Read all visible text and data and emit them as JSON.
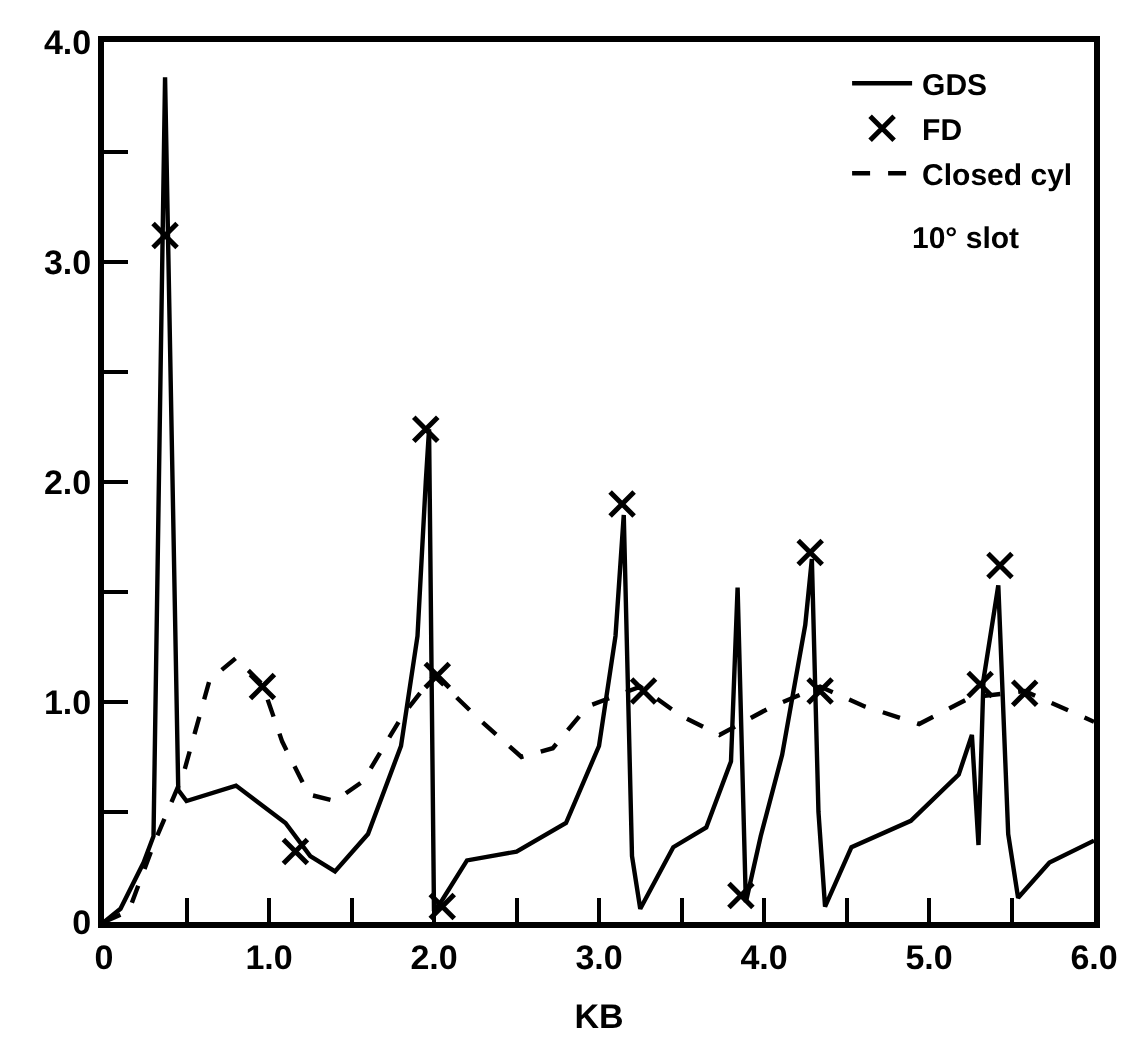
{
  "chart_data": {
    "type": "line",
    "xlabel": "KB",
    "xlim": [
      0,
      6
    ],
    "ylim": [
      0,
      4
    ],
    "xticks": [
      0,
      {
        "value": 0.5,
        "label": null
      },
      {
        "value": 1,
        "label": "1.0"
      },
      {
        "value": 1.5,
        "label": null
      },
      {
        "value": 2,
        "label": "2.0"
      },
      {
        "value": 2.5,
        "label": null
      },
      {
        "value": 3,
        "label": "3.0"
      },
      {
        "value": 3.5,
        "label": null
      },
      {
        "value": 4,
        "label": "4.0"
      },
      {
        "value": 4.5,
        "label": null
      },
      {
        "value": 5,
        "label": "5.0"
      },
      {
        "value": 5.5,
        "label": null
      },
      {
        "value": 6,
        "label": "6.0"
      }
    ],
    "yticks": [
      0,
      {
        "value": 0.5,
        "label": null
      },
      {
        "value": 1,
        "label": "1.0"
      },
      {
        "value": 1.5,
        "label": null
      },
      {
        "value": 2,
        "label": "2.0"
      },
      {
        "value": 2.5,
        "label": null
      },
      {
        "value": 3,
        "label": "3.0"
      },
      {
        "value": 3.5,
        "label": null
      },
      {
        "value": 4,
        "label": "4.0"
      }
    ],
    "legend": "top right",
    "annotations": [
      "10° slot"
    ],
    "series": [
      {
        "name": "GDS",
        "line_style": "solid",
        "marker": "none",
        "color": "#000000",
        "x": [
          0,
          0.1,
          0.24,
          0.3,
          0.37,
          0.45,
          0.5,
          0.8,
          1.1,
          1.25,
          1.4,
          1.6,
          1.8,
          1.9,
          1.95,
          1.97,
          2.0,
          2.05,
          2.2,
          2.5,
          2.8,
          3.0,
          3.1,
          3.15,
          3.2,
          3.25,
          3.45,
          3.65,
          3.8,
          3.84,
          3.89,
          3.98,
          4.11,
          4.25,
          4.29,
          4.33,
          4.37,
          4.53,
          4.89,
          5.18,
          5.26,
          5.3,
          5.33,
          5.42,
          5.48,
          5.54,
          5.73,
          6.0
        ],
        "values": [
          0,
          0.06,
          0.27,
          0.39,
          3.84,
          0.6,
          0.55,
          0.62,
          0.45,
          0.3,
          0.23,
          0.4,
          0.8,
          1.3,
          2.0,
          2.24,
          0.05,
          0.1,
          0.28,
          0.32,
          0.45,
          0.8,
          1.3,
          1.85,
          0.3,
          0.06,
          0.34,
          0.43,
          0.73,
          1.52,
          0.09,
          0.39,
          0.76,
          1.35,
          1.65,
          0.5,
          0.07,
          0.34,
          0.46,
          0.67,
          0.85,
          0.35,
          1.1,
          1.53,
          0.4,
          0.11,
          0.27,
          0.37
        ]
      },
      {
        "name": "FD",
        "type": "scatter",
        "marker": "cross",
        "color": "#000000",
        "x": [
          0.37,
          0.96,
          1.16,
          1.95,
          2.02,
          2.05,
          3.14,
          3.27,
          3.86,
          4.28,
          4.34,
          5.31,
          5.43,
          5.58
        ],
        "values": [
          3.12,
          1.07,
          0.32,
          2.24,
          1.12,
          0.07,
          1.9,
          1.05,
          0.12,
          1.68,
          1.05,
          1.08,
          1.62,
          1.04
        ]
      },
      {
        "name": "Closed cyl",
        "type": "line",
        "line_style": "dashed",
        "marker": "none",
        "color": "#000000",
        "x": [
          0,
          0.15,
          0.31,
          0.48,
          0.64,
          0.8,
          0.96,
          1.08,
          1.24,
          1.4,
          1.57,
          1.81,
          2.0,
          2.29,
          2.53,
          2.72,
          2.93,
          3.25,
          3.49,
          3.73,
          4.05,
          4.34,
          4.61,
          4.94,
          5.25,
          5.58,
          6.0
        ],
        "values": [
          0,
          0.05,
          0.37,
          0.67,
          1.1,
          1.2,
          1.08,
          0.82,
          0.58,
          0.55,
          0.64,
          0.94,
          1.12,
          0.91,
          0.75,
          0.79,
          0.98,
          1.07,
          0.94,
          0.85,
          0.98,
          1.07,
          0.98,
          0.9,
          1.02,
          1.05,
          0.91
        ]
      }
    ]
  }
}
